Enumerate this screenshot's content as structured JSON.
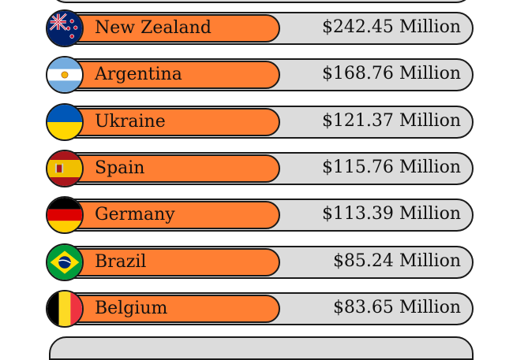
{
  "chart_data": {
    "type": "bar",
    "categories": [
      "New Zealand",
      "Argentina",
      "Ukraine",
      "Spain",
      "Germany",
      "Brazil",
      "Belgium"
    ],
    "values": [
      242.45,
      168.76,
      121.37,
      115.76,
      113.39,
      85.24,
      83.65
    ],
    "value_labels": [
      "$242.45 Million",
      "$168.76 Million",
      "$121.37 Million",
      "$115.76 Million",
      "$113.39 Million",
      "$85.24 Million",
      "$83.65 Million"
    ],
    "flag_icons": [
      "new-zealand-flag-icon",
      "argentina-flag-icon",
      "ukraine-flag-icon",
      "spain-flag-icon",
      "germany-flag-icon",
      "brazil-flag-icon",
      "belgium-flag-icon"
    ],
    "bar_color": "#ff7f33",
    "track_color": "#dcdcdc"
  }
}
